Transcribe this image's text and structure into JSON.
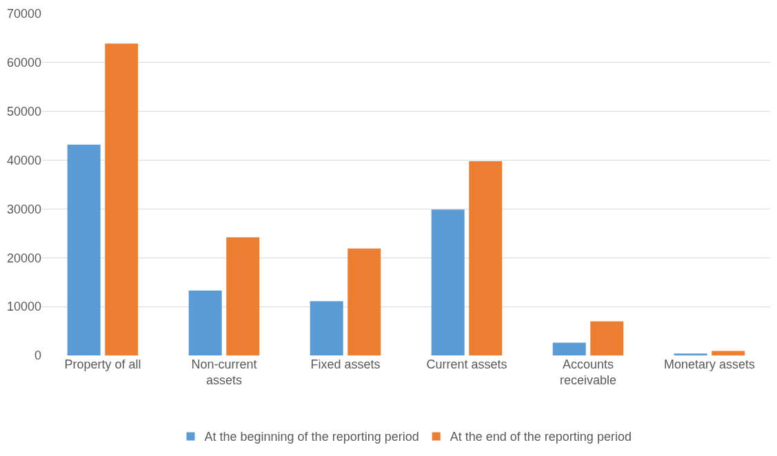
{
  "chart_data": {
    "type": "bar",
    "categories": [
      "Property of all",
      "Non-current assets",
      "Fixed assets",
      "Current assets",
      "Accounts receivable",
      "Monetary assets"
    ],
    "series": [
      {
        "name": "At the beginning of the reporting period",
        "color": "#5b9bd5",
        "values": [
          43200,
          13300,
          11100,
          29900,
          2600,
          400
        ]
      },
      {
        "name": "At the end of the reporting period",
        "color": "#ed7d31",
        "values": [
          63900,
          24200,
          21900,
          39800,
          7000,
          900
        ]
      }
    ],
    "ylim": [
      0,
      70000
    ],
    "yticks": [
      0,
      10000,
      20000,
      30000,
      40000,
      50000,
      60000,
      70000
    ],
    "grid": "y",
    "legend": "bottom"
  }
}
